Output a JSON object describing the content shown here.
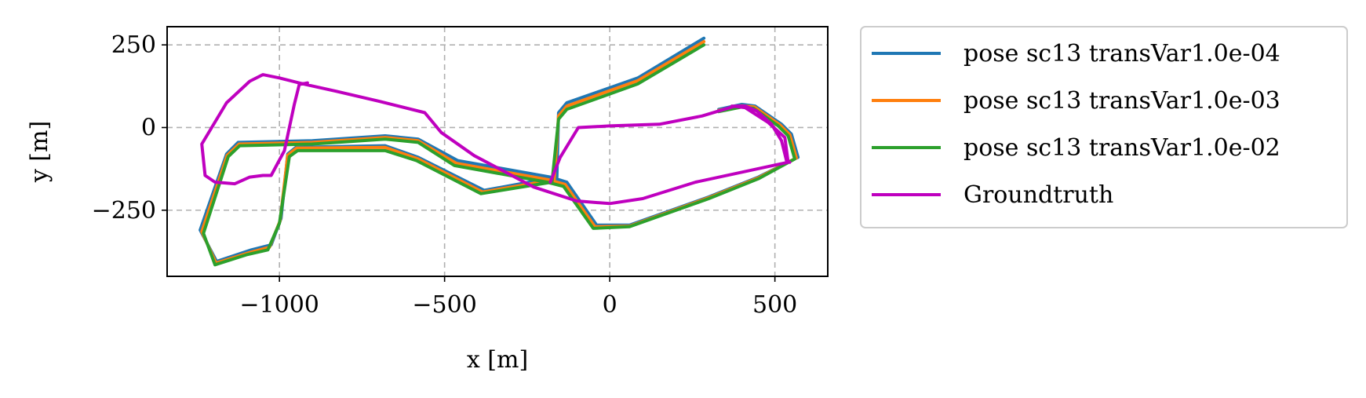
{
  "chart_data": {
    "type": "line",
    "xlabel": "x [m]",
    "ylabel": "y [m]",
    "xlim": [
      -1340,
      660
    ],
    "ylim": [
      -450,
      305
    ],
    "x_ticks": [
      -1000,
      -500,
      0,
      500
    ],
    "y_ticks": [
      250,
      0,
      -250
    ],
    "x_tick_labels": [
      "−1000",
      "−500",
      "0",
      "500"
    ],
    "y_tick_labels": [
      "250",
      "0",
      "−250"
    ],
    "grid": true,
    "legend_position": "outside-right",
    "series": [
      {
        "name": "pose sc13 transVar1.0e-04",
        "color": "#1f77b4",
        "points": [
          [
            285,
            270
          ],
          [
            85,
            150
          ],
          [
            -130,
            75
          ],
          [
            -155,
            45
          ],
          [
            -160,
            -150
          ],
          [
            -380,
            -190
          ],
          [
            -580,
            -90
          ],
          [
            -680,
            -55
          ],
          [
            -950,
            -60
          ],
          [
            -975,
            -80
          ],
          [
            -995,
            -275
          ],
          [
            -1025,
            -355
          ],
          [
            -1085,
            -370
          ],
          [
            -1190,
            -405
          ],
          [
            -1240,
            -310
          ],
          [
            -1160,
            -80
          ],
          [
            -1125,
            -45
          ],
          [
            -900,
            -40
          ],
          [
            -680,
            -25
          ],
          [
            -580,
            -35
          ],
          [
            -460,
            -100
          ],
          [
            -180,
            -150
          ],
          [
            -130,
            -165
          ],
          [
            -40,
            -295
          ],
          [
            60,
            -295
          ],
          [
            300,
            -210
          ],
          [
            450,
            -150
          ],
          [
            570,
            -90
          ],
          [
            550,
            -20
          ],
          [
            520,
            10
          ],
          [
            440,
            65
          ],
          [
            400,
            70
          ],
          [
            330,
            55
          ]
        ]
      },
      {
        "name": "pose sc13 transVar1.0e-03",
        "color": "#ff7f0e",
        "points": [
          [
            285,
            260
          ],
          [
            85,
            142
          ],
          [
            -130,
            65
          ],
          [
            -155,
            35
          ],
          [
            -168,
            -158
          ],
          [
            -385,
            -195
          ],
          [
            -580,
            -95
          ],
          [
            -680,
            -60
          ],
          [
            -948,
            -62
          ],
          [
            -975,
            -84
          ],
          [
            -998,
            -282
          ],
          [
            -1030,
            -362
          ],
          [
            -1090,
            -378
          ],
          [
            -1192,
            -410
          ],
          [
            -1235,
            -315
          ],
          [
            -1158,
            -84
          ],
          [
            -1122,
            -50
          ],
          [
            -900,
            -45
          ],
          [
            -680,
            -30
          ],
          [
            -580,
            -40
          ],
          [
            -465,
            -108
          ],
          [
            -185,
            -158
          ],
          [
            -135,
            -172
          ],
          [
            -45,
            -300
          ],
          [
            60,
            -298
          ],
          [
            300,
            -212
          ],
          [
            450,
            -152
          ],
          [
            565,
            -92
          ],
          [
            545,
            -22
          ],
          [
            515,
            8
          ],
          [
            438,
            62
          ],
          [
            400,
            66
          ],
          [
            330,
            52
          ]
        ]
      },
      {
        "name": "pose sc13 transVar1.0e-02",
        "color": "#2ca02c",
        "points": [
          [
            285,
            250
          ],
          [
            85,
            132
          ],
          [
            -130,
            55
          ],
          [
            -155,
            25
          ],
          [
            -175,
            -165
          ],
          [
            -390,
            -200
          ],
          [
            -585,
            -100
          ],
          [
            -680,
            -70
          ],
          [
            -945,
            -70
          ],
          [
            -970,
            -88
          ],
          [
            -1000,
            -290
          ],
          [
            -1035,
            -370
          ],
          [
            -1100,
            -385
          ],
          [
            -1195,
            -415
          ],
          [
            -1230,
            -320
          ],
          [
            -1155,
            -88
          ],
          [
            -1120,
            -55
          ],
          [
            -900,
            -50
          ],
          [
            -680,
            -35
          ],
          [
            -580,
            -45
          ],
          [
            -470,
            -115
          ],
          [
            -190,
            -165
          ],
          [
            -140,
            -178
          ],
          [
            -50,
            -305
          ],
          [
            60,
            -300
          ],
          [
            300,
            -215
          ],
          [
            450,
            -155
          ],
          [
            560,
            -95
          ],
          [
            540,
            -25
          ],
          [
            510,
            5
          ],
          [
            435,
            58
          ],
          [
            400,
            62
          ],
          [
            330,
            48
          ]
        ]
      },
      {
        "name": "Groundtruth",
        "color": "#bf00bf",
        "points": [
          [
            370,
            65
          ],
          [
            410,
            60
          ],
          [
            480,
            15
          ],
          [
            530,
            -30
          ],
          [
            540,
            -105
          ],
          [
            260,
            -165
          ],
          [
            100,
            -215
          ],
          [
            0,
            -230
          ],
          [
            -100,
            -222
          ],
          [
            -230,
            -180
          ],
          [
            -410,
            -85
          ],
          [
            -510,
            -15
          ],
          [
            -560,
            45
          ],
          [
            -700,
            80
          ],
          [
            -830,
            110
          ],
          [
            -920,
            130
          ],
          [
            -1000,
            150
          ],
          [
            -1050,
            160
          ],
          [
            -1090,
            140
          ],
          [
            -1160,
            75
          ],
          [
            -1235,
            -50
          ],
          [
            -1225,
            -145
          ],
          [
            -1195,
            -165
          ],
          [
            -1135,
            -170
          ],
          [
            -1090,
            -150
          ],
          [
            -1050,
            -145
          ],
          [
            -1025,
            -145
          ],
          [
            -985,
            -70
          ],
          [
            -955,
            70
          ],
          [
            -940,
            130
          ],
          [
            -915,
            135
          ]
        ]
      },
      {
        "name": "",
        "color": "#bf00bf",
        "points": [
          [
            -180,
            -165
          ],
          [
            -150,
            -90
          ],
          [
            -95,
            0
          ],
          [
            0,
            5
          ],
          [
            150,
            10
          ],
          [
            280,
            35
          ],
          [
            380,
            65
          ],
          [
            410,
            65
          ],
          [
            445,
            50
          ],
          [
            490,
            10
          ],
          [
            520,
            -40
          ],
          [
            535,
            -100
          ],
          [
            545,
            -105
          ]
        ]
      }
    ]
  },
  "legend": {
    "items": [
      {
        "label": "pose sc13 transVar1.0e-04",
        "color": "#1f77b4"
      },
      {
        "label": "pose sc13 transVar1.0e-03",
        "color": "#ff7f0e"
      },
      {
        "label": "pose sc13 transVar1.0e-02",
        "color": "#2ca02c"
      },
      {
        "label": "Groundtruth",
        "color": "#bf00bf"
      }
    ]
  }
}
